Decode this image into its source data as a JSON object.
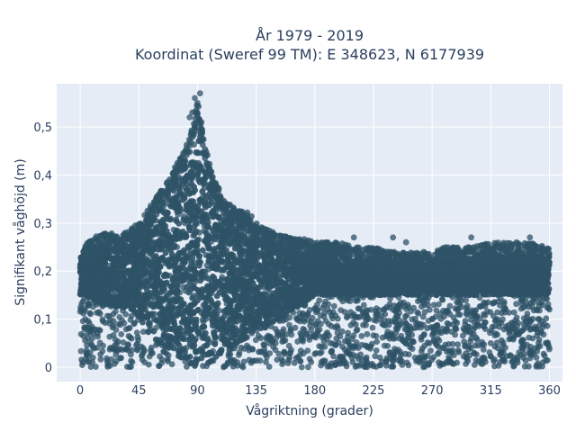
{
  "chart_data": {
    "type": "scatter",
    "title": "År 1979 - 2019",
    "subtitle": "Koordinat (Sweref 99 TM): E 348623, N 6177939",
    "xlabel": "Vågriktning (grader)",
    "ylabel": "Signifikant våghöjd (m)",
    "xlim": [
      -18,
      370
    ],
    "ylim": [
      -0.03,
      0.59
    ],
    "xticks": [
      0,
      45,
      90,
      135,
      180,
      225,
      270,
      315,
      360
    ],
    "xtick_labels": [
      "0",
      "45",
      "90",
      "135",
      "180",
      "225",
      "270",
      "315",
      "360"
    ],
    "yticks": [
      0,
      0.1,
      0.2,
      0.3,
      0.4,
      0.5
    ],
    "ytick_labels": [
      "0",
      "0,1",
      "0,2",
      "0,3",
      "0,4",
      "0,5"
    ],
    "grid": true,
    "marker_color": "#2e5266",
    "background_color": "#e5ecf6",
    "envelope": {
      "x": [
        0,
        5,
        10,
        20,
        30,
        40,
        45,
        50,
        60,
        70,
        75,
        80,
        85,
        88,
        90,
        92,
        95,
        100,
        105,
        110,
        120,
        130,
        135,
        140,
        150,
        160,
        170,
        180,
        190,
        200,
        210,
        220,
        225,
        240,
        260,
        270,
        280,
        300,
        315,
        330,
        345,
        360
      ],
      "top": [
        0.25,
        0.26,
        0.27,
        0.28,
        0.28,
        0.29,
        0.3,
        0.32,
        0.36,
        0.4,
        0.43,
        0.45,
        0.49,
        0.53,
        0.56,
        0.52,
        0.47,
        0.42,
        0.38,
        0.35,
        0.33,
        0.32,
        0.3,
        0.29,
        0.28,
        0.27,
        0.27,
        0.26,
        0.26,
        0.26,
        0.25,
        0.25,
        0.25,
        0.24,
        0.24,
        0.24,
        0.25,
        0.25,
        0.26,
        0.26,
        0.26,
        0.25
      ]
    },
    "dense_band": {
      "x": [
        0,
        20,
        40,
        60,
        80,
        90,
        100,
        120,
        140,
        160,
        170,
        180,
        200,
        240,
        280,
        320,
        360
      ],
      "low": [
        0.15,
        0.13,
        0.12,
        0.05,
        0.01,
        0.0,
        0.01,
        0.05,
        0.08,
        0.11,
        0.13,
        0.15,
        0.15,
        0.15,
        0.15,
        0.15,
        0.15
      ],
      "high": [
        0.23,
        0.24,
        0.26,
        0.3,
        0.4,
        0.45,
        0.38,
        0.28,
        0.26,
        0.25,
        0.24,
        0.23,
        0.22,
        0.22,
        0.22,
        0.23,
        0.23
      ]
    },
    "outliers": [
      [
        88,
        0.56
      ],
      [
        90,
        0.55
      ],
      [
        92,
        0.57
      ],
      [
        86,
        0.53
      ],
      [
        84,
        0.52
      ],
      [
        93,
        0.51
      ],
      [
        2,
        0.01
      ],
      [
        5,
        0.03
      ],
      [
        4,
        0.1
      ],
      [
        10,
        0.07
      ],
      [
        110,
        0.0
      ],
      [
        125,
        0.0
      ],
      [
        150,
        0.05
      ],
      [
        170,
        0.0
      ],
      [
        200,
        0.02
      ],
      [
        230,
        0.02
      ],
      [
        260,
        0.02
      ],
      [
        275,
        0.01
      ],
      [
        285,
        0.03
      ],
      [
        300,
        0.07
      ],
      [
        315,
        0.05
      ],
      [
        330,
        0.06
      ],
      [
        340,
        0.04
      ],
      [
        350,
        0.02
      ],
      [
        355,
        0.01
      ],
      [
        358,
        0.05
      ],
      [
        350,
        0.08
      ],
      [
        340,
        0.09
      ],
      [
        320,
        0.1
      ],
      [
        290,
        0.11
      ],
      [
        270,
        0.1
      ],
      [
        250,
        0.09
      ],
      [
        230,
        0.1
      ],
      [
        210,
        0.11
      ],
      [
        190,
        0.12
      ],
      [
        240,
        0.27
      ],
      [
        250,
        0.26
      ],
      [
        210,
        0.27
      ],
      [
        300,
        0.27
      ],
      [
        345,
        0.27
      ],
      [
        360,
        0.12
      ]
    ]
  }
}
